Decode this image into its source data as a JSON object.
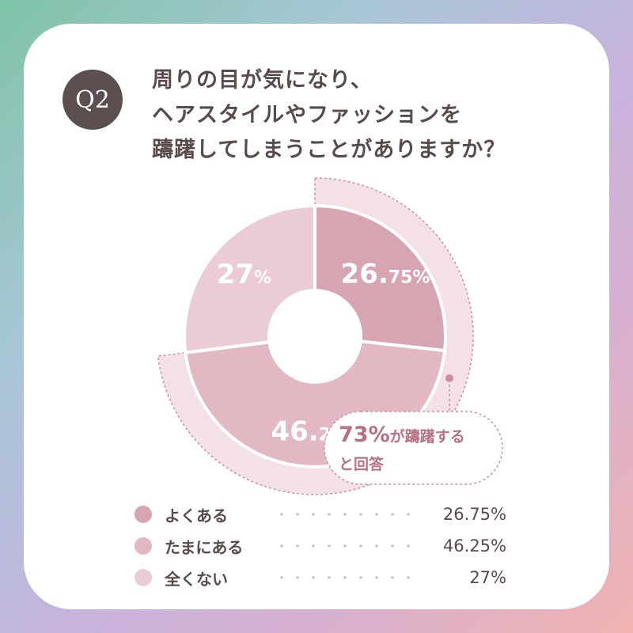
{
  "badge": "Q2",
  "question_lines": [
    "周りの目が気になり、",
    "ヘアスタイルやファッションを",
    "躊躇してしまうことがありますか？"
  ],
  "chart_data": {
    "type": "pie",
    "style": "donut",
    "categories": [
      "よくある",
      "たまにある",
      "全くない"
    ],
    "values": [
      26.75,
      46.25,
      27
    ],
    "slice_labels": [
      {
        "number": "26.",
        "decimal": "75%"
      },
      {
        "number": "46.",
        "decimal": "25%"
      },
      {
        "number": "27",
        "decimal": "%"
      }
    ],
    "colors": [
      "#d7a5b1",
      "#e2b8c3",
      "#ebcbd4"
    ],
    "highlight": {
      "categories": [
        "よくある",
        "たまにある"
      ],
      "percent_text": "73%",
      "text_line1": "が躊躇する",
      "text_line2": "と回答"
    }
  },
  "legend": [
    {
      "label": "よくある",
      "value": "26.75%",
      "color": "#d7a5b1"
    },
    {
      "label": "たまにある",
      "value": "46.25%",
      "color": "#e2b8c3"
    },
    {
      "label": "全くない",
      "value": "27%",
      "color": "#ebcbd4"
    }
  ]
}
